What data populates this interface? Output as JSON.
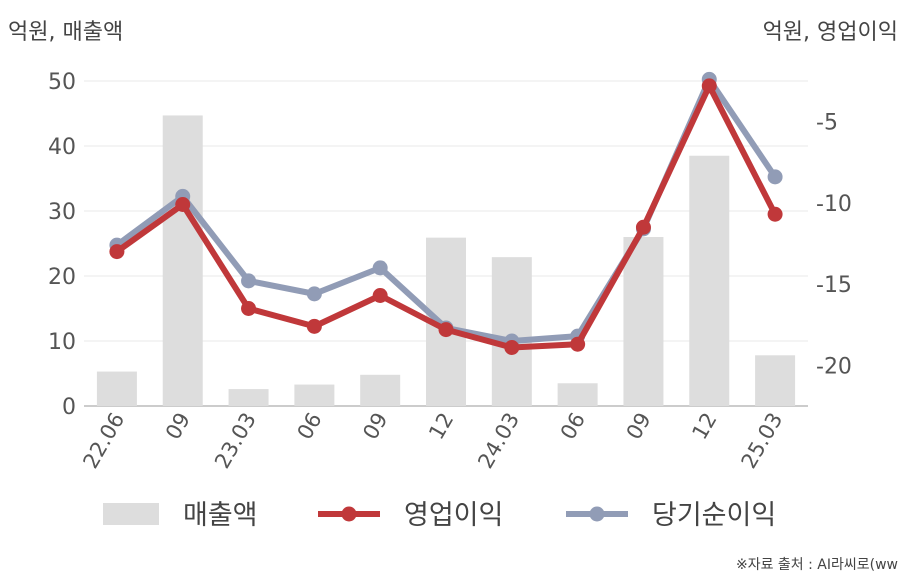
{
  "chart_data": {
    "type": "bar+line",
    "left_axis_label": "억원, 매출액",
    "right_axis_label": "억원, 영업이익",
    "categories": [
      "22.06",
      "09",
      "23.03",
      "06",
      "09",
      "12",
      "24.03",
      "06",
      "09",
      "12",
      "25.03"
    ],
    "left_axis": {
      "ylim": [
        0,
        50
      ],
      "ticks": [
        "0",
        "10",
        "20",
        "30",
        "40",
        "50"
      ]
    },
    "right_axis": {
      "ylim": [
        -22.5,
        -2.5
      ],
      "ticks": [
        "-20",
        "-15",
        "-10",
        "-5"
      ]
    },
    "series": [
      {
        "name": "매출액",
        "type": "bar",
        "axis": "left",
        "color": "#dddddd",
        "values": [
          5.3,
          44.7,
          2.6,
          3.3,
          4.8,
          25.9,
          22.9,
          3.5,
          26.0,
          38.5,
          7.8
        ]
      },
      {
        "name": "영업이익",
        "type": "line",
        "axis": "right",
        "color": "#c0383a",
        "values": [
          -13.0,
          -10.1,
          -16.5,
          -17.6,
          -15.7,
          -17.8,
          -18.9,
          -18.7,
          -11.5,
          -2.8,
          -10.7
        ]
      },
      {
        "name": "당기순이익",
        "type": "line",
        "axis": "right",
        "color": "#919cb6",
        "values": [
          -12.6,
          -9.6,
          -14.8,
          -15.6,
          -14.0,
          -17.7,
          -18.5,
          -18.2,
          -11.6,
          -2.4,
          -8.4
        ]
      }
    ],
    "grid": true,
    "legend_position": "bottom"
  },
  "source_note": "※자료 출처 : AI라씨로(ww"
}
